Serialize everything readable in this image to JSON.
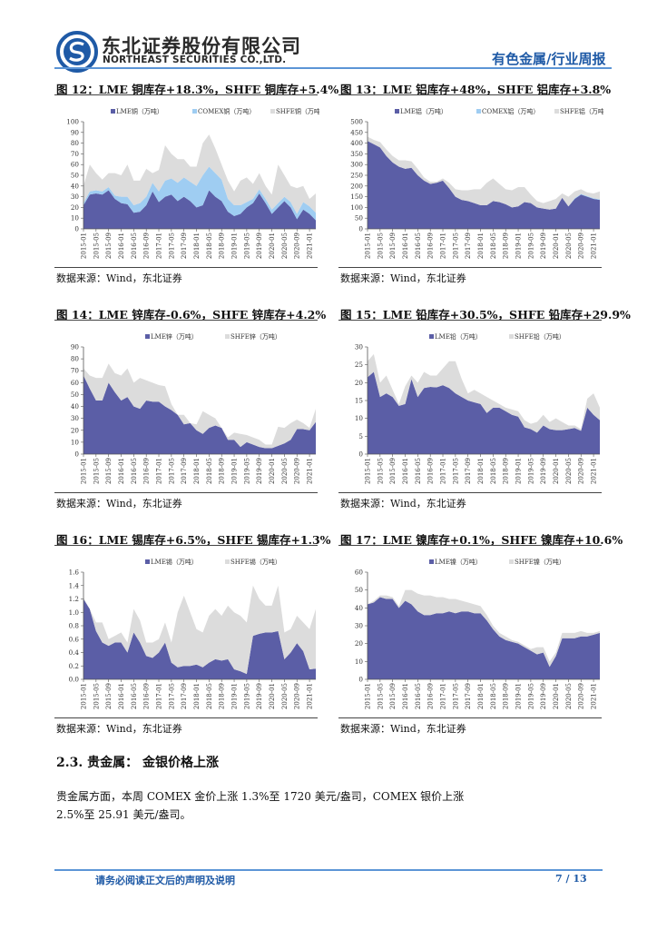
{
  "header": {
    "company_cn": "东北证券股份有限公司",
    "company_en": "NORTHEAST SECURITIES CO.,LTD.",
    "report_type": "有色金属/行业周报",
    "logo_color": "#1f5aa6"
  },
  "colors": {
    "LME": "#5b5ea6",
    "COMEX": "#9fcdf2",
    "SHFE": "#dcdcdc"
  },
  "figures": [
    {
      "title": "图  12：LME 铜库存+18.3%，SHFE 铜库存+5.4%",
      "source": "数据来源：Wind，东北证券"
    },
    {
      "title": "图  13：LME 铝库存+48%，SHFE 铝库存+3.8%",
      "source": "数据来源：Wind，东北证券"
    },
    {
      "title": "图  14：LME 锌库存-0.6%，SHFE 锌库存+4.2%",
      "source": "数据来源：Wind，东北证券"
    },
    {
      "title": "图  15：LME 铅库存+30.5%，SHFE 铅库存+29.9%",
      "source": "数据来源：Wind，东北证券"
    },
    {
      "title": "图  16：LME 锡库存+6.5%，SHFE 锡库存+1.3%",
      "source": "数据来源：Wind，东北证券"
    },
    {
      "title": "图  17：LME 镍库存+0.1%，SHFE 镍库存+10.6%",
      "source": "数据来源：Wind，东北证券"
    }
  ],
  "chart_data": [
    {
      "type": "area",
      "stacked": true,
      "ylim": [
        0,
        100
      ],
      "yticks": [
        "0",
        "10",
        "20",
        "30",
        "40",
        "50",
        "60",
        "70",
        "80",
        "90",
        "100"
      ],
      "xticks": [
        "2015-01",
        "2015-05",
        "2015-09",
        "2016-01",
        "2016-05",
        "2016-09",
        "2017-01",
        "2017-05",
        "2017-09",
        "2018-01",
        "2018-05",
        "2018-09",
        "2019-01",
        "2019-05",
        "2019-09",
        "2020-01",
        "2020-05",
        "2020-09",
        "2021-01"
      ],
      "legend": "top",
      "grid": false,
      "x": [
        "2015-01",
        "2015-03",
        "2015-05",
        "2015-07",
        "2015-09",
        "2015-11",
        "2016-01",
        "2016-03",
        "2016-05",
        "2016-07",
        "2016-09",
        "2016-11",
        "2017-01",
        "2017-03",
        "2017-05",
        "2017-07",
        "2017-09",
        "2017-11",
        "2018-01",
        "2018-03",
        "2018-05",
        "2018-07",
        "2018-09",
        "2018-11",
        "2019-01",
        "2019-03",
        "2019-05",
        "2019-07",
        "2019-09",
        "2019-11",
        "2020-01",
        "2020-03",
        "2020-05",
        "2020-07",
        "2020-09",
        "2020-11",
        "2021-01",
        "2021-03"
      ],
      "series": [
        {
          "name": "LME铜（万吨）",
          "key": "LME",
          "values": [
            22,
            32,
            33,
            32,
            36,
            28,
            24,
            23,
            15,
            16,
            22,
            35,
            25,
            30,
            32,
            26,
            30,
            26,
            20,
            22,
            36,
            30,
            26,
            16,
            12,
            14,
            20,
            24,
            33,
            24,
            14,
            20,
            26,
            20,
            9,
            18,
            14,
            8
          ]
        },
        {
          "name": "COMEX铜（万吨）",
          "key": "COMEX",
          "values": [
            2,
            3,
            3,
            3,
            3,
            3,
            6,
            7,
            7,
            8,
            8,
            8,
            10,
            15,
            15,
            17,
            18,
            18,
            20,
            28,
            22,
            22,
            20,
            12,
            10,
            8,
            5,
            4,
            4,
            4,
            4,
            4,
            4,
            5,
            5,
            7,
            7,
            7
          ]
        },
        {
          "name": "SHFE铜（万吨）",
          "key": "SHFE",
          "values": [
            16,
            25,
            16,
            11,
            13,
            21,
            20,
            30,
            23,
            21,
            26,
            9,
            20,
            33,
            23,
            22,
            17,
            14,
            18,
            30,
            30,
            23,
            14,
            17,
            13,
            23,
            23,
            14,
            15,
            12,
            14,
            36,
            20,
            15,
            24,
            15,
            7,
            18
          ]
        }
      ]
    },
    {
      "type": "area",
      "stacked": true,
      "ylim": [
        0,
        500
      ],
      "yticks": [
        "0",
        "50",
        "100",
        "150",
        "200",
        "250",
        "300",
        "350",
        "400",
        "450",
        "500"
      ],
      "xticks": [
        "2015-01",
        "2015-05",
        "2015-09",
        "2016-01",
        "2016-05",
        "2016-09",
        "2017-01",
        "2017-05",
        "2017-09",
        "2018-01",
        "2018-05",
        "2018-09",
        "2019-01",
        "2019-05",
        "2019-09",
        "2020-01",
        "2020-05",
        "2020-09",
        "2021-01"
      ],
      "legend": "top",
      "grid": false,
      "x": [
        "2015-01",
        "2015-03",
        "2015-05",
        "2015-07",
        "2015-09",
        "2015-11",
        "2016-01",
        "2016-03",
        "2016-05",
        "2016-07",
        "2016-09",
        "2016-11",
        "2017-01",
        "2017-03",
        "2017-05",
        "2017-07",
        "2017-09",
        "2017-11",
        "2018-01",
        "2018-03",
        "2018-05",
        "2018-07",
        "2018-09",
        "2018-11",
        "2019-01",
        "2019-03",
        "2019-05",
        "2019-07",
        "2019-09",
        "2019-11",
        "2020-01",
        "2020-03",
        "2020-05",
        "2020-07",
        "2020-09",
        "2020-11",
        "2021-01",
        "2021-03"
      ],
      "series": [
        {
          "name": "LME铝（万吨）",
          "key": "LME",
          "values": [
            410,
            395,
            380,
            340,
            310,
            290,
            280,
            285,
            250,
            225,
            210,
            215,
            225,
            190,
            150,
            135,
            130,
            120,
            110,
            110,
            130,
            125,
            115,
            100,
            105,
            125,
            120,
            100,
            95,
            90,
            95,
            145,
            105,
            140,
            160,
            150,
            140,
            135
          ]
        },
        {
          "name": "COMEX铝（万吨）",
          "key": "COMEX",
          "values": [
            0,
            0,
            0,
            0,
            0,
            0,
            0,
            0,
            0,
            0,
            0,
            0,
            0,
            0,
            0,
            0,
            0,
            0,
            0,
            0,
            0,
            0,
            0,
            0,
            0,
            0,
            0,
            0,
            0,
            0,
            0,
            0,
            0,
            3,
            3,
            3,
            3,
            3
          ]
        },
        {
          "name": "SHFE铝（万吨）",
          "key": "SHFE",
          "values": [
            20,
            20,
            25,
            30,
            30,
            30,
            40,
            30,
            30,
            15,
            10,
            5,
            10,
            25,
            35,
            45,
            50,
            65,
            75,
            105,
            105,
            85,
            70,
            80,
            90,
            70,
            40,
            30,
            25,
            40,
            45,
            20,
            45,
            32,
            22,
            17,
            22,
            37
          ]
        }
      ]
    },
    {
      "type": "area",
      "stacked": true,
      "ylim": [
        0,
        90
      ],
      "yticks": [
        "0",
        "10",
        "20",
        "30",
        "40",
        "50",
        "60",
        "70",
        "80",
        "90"
      ],
      "xticks": [
        "2015-01",
        "2015-05",
        "2015-09",
        "2016-01",
        "2016-05",
        "2016-09",
        "2017-01",
        "2017-05",
        "2017-09",
        "2018-01",
        "2018-05",
        "2018-09",
        "2019-01",
        "2019-05",
        "2019-09",
        "2020-01",
        "2020-05",
        "2020-09",
        "2021-01"
      ],
      "legend": "top",
      "grid": false,
      "x": [
        "2015-01",
        "2015-03",
        "2015-05",
        "2015-07",
        "2015-09",
        "2015-11",
        "2016-01",
        "2016-03",
        "2016-05",
        "2016-07",
        "2016-09",
        "2016-11",
        "2017-01",
        "2017-03",
        "2017-05",
        "2017-07",
        "2017-09",
        "2017-11",
        "2018-01",
        "2018-03",
        "2018-05",
        "2018-07",
        "2018-09",
        "2018-11",
        "2019-01",
        "2019-03",
        "2019-05",
        "2019-07",
        "2019-09",
        "2019-11",
        "2020-01",
        "2020-03",
        "2020-05",
        "2020-07",
        "2020-09",
        "2020-11",
        "2021-01",
        "2021-03"
      ],
      "series": [
        {
          "name": "LME锌（万吨）",
          "key": "LME",
          "values": [
            66,
            55,
            45,
            45,
            60,
            52,
            45,
            48,
            40,
            38,
            45,
            44,
            44,
            40,
            37,
            33,
            25,
            26,
            20,
            17,
            22,
            24,
            22,
            12,
            12,
            6,
            10,
            8,
            6,
            5,
            5,
            7,
            9,
            12,
            21,
            21,
            20,
            27
          ]
        },
        {
          "name": "SHFE锌（万吨）",
          "key": "SHFE",
          "values": [
            6,
            11,
            19,
            19,
            16,
            16,
            21,
            24,
            20,
            26,
            17,
            16,
            14,
            17,
            5,
            0,
            8,
            0,
            5,
            19,
            11,
            6,
            0,
            2,
            6,
            11,
            6,
            6,
            6,
            3,
            3,
            16,
            13,
            14,
            8,
            5,
            2,
            11
          ]
        }
      ]
    },
    {
      "type": "area",
      "stacked": true,
      "ylim": [
        0,
        30
      ],
      "yticks": [
        "0",
        "5",
        "10",
        "15",
        "20",
        "25",
        "30"
      ],
      "xticks": [
        "2015-01",
        "2015-05",
        "2015-09",
        "2016-01",
        "2016-05",
        "2016-09",
        "2017-01",
        "2017-05",
        "2017-09",
        "2018-01",
        "2018-05",
        "2018-09",
        "2019-01",
        "2019-05",
        "2019-09",
        "2020-01",
        "2020-05",
        "2020-09",
        "2021-01"
      ],
      "legend": "top",
      "grid": false,
      "x": [
        "2015-01",
        "2015-03",
        "2015-05",
        "2015-07",
        "2015-09",
        "2015-11",
        "2016-01",
        "2016-03",
        "2016-05",
        "2016-07",
        "2016-09",
        "2016-11",
        "2017-01",
        "2017-03",
        "2017-05",
        "2017-07",
        "2017-09",
        "2017-11",
        "2018-01",
        "2018-03",
        "2018-05",
        "2018-07",
        "2018-09",
        "2018-11",
        "2019-01",
        "2019-03",
        "2019-05",
        "2019-07",
        "2019-09",
        "2019-11",
        "2020-01",
        "2020-03",
        "2020-05",
        "2020-07",
        "2020-09",
        "2020-11",
        "2021-01",
        "2021-03"
      ],
      "series": [
        {
          "name": "LME铅（万吨）",
          "key": "LME",
          "values": [
            21.5,
            23,
            16,
            17,
            16,
            13.5,
            14,
            21,
            16,
            18.5,
            18.8,
            18.7,
            19.3,
            18.5,
            17,
            16,
            15,
            14.5,
            14,
            11.5,
            13,
            13,
            12,
            11,
            10.5,
            7.5,
            7,
            6,
            8,
            7,
            6.7,
            6.7,
            7,
            7.3,
            6.5,
            13,
            11,
            9.5
          ]
        },
        {
          "name": "SHFE铅（万吨）",
          "key": "SHFE",
          "values": [
            4.5,
            5,
            4,
            5,
            2,
            0.5,
            5,
            1,
            4,
            4.5,
            3.2,
            3.3,
            4.7,
            7.5,
            9,
            5,
            2,
            3.5,
            3,
            4.5,
            2,
            1,
            1,
            1.5,
            1.5,
            2,
            1.5,
            3,
            3,
            2,
            3.3,
            2.3,
            1,
            0.7,
            0.5,
            2.5,
            6,
            3.5
          ]
        }
      ]
    },
    {
      "type": "area",
      "stacked": true,
      "ylim": [
        0,
        1.6
      ],
      "yticks": [
        "0.0",
        "0.2",
        "0.4",
        "0.6",
        "0.8",
        "1.0",
        "1.2",
        "1.4",
        "1.6"
      ],
      "xticks": [
        "2015-01",
        "2015-05",
        "2015-09",
        "2016-01",
        "2016-05",
        "2016-09",
        "2017-01",
        "2017-05",
        "2017-09",
        "2018-01",
        "2018-05",
        "2018-09",
        "2019-01",
        "2019-05",
        "2019-09",
        "2020-01",
        "2020-05",
        "2020-09",
        "2021-01"
      ],
      "legend": "top",
      "grid": false,
      "x": [
        "2015-01",
        "2015-03",
        "2015-05",
        "2015-07",
        "2015-09",
        "2015-11",
        "2016-01",
        "2016-03",
        "2016-05",
        "2016-07",
        "2016-09",
        "2016-11",
        "2017-01",
        "2017-03",
        "2017-05",
        "2017-07",
        "2017-09",
        "2017-11",
        "2018-01",
        "2018-03",
        "2018-05",
        "2018-07",
        "2018-09",
        "2018-11",
        "2019-01",
        "2019-03",
        "2019-05",
        "2019-07",
        "2019-09",
        "2019-11",
        "2020-01",
        "2020-03",
        "2020-05",
        "2020-07",
        "2020-09",
        "2020-11",
        "2021-01",
        "2021-03"
      ],
      "series": [
        {
          "name": "LME锡（万吨）",
          "key": "LME",
          "values": [
            1.2,
            1.05,
            0.72,
            0.55,
            0.5,
            0.55,
            0.55,
            0.4,
            0.7,
            0.55,
            0.35,
            0.32,
            0.4,
            0.55,
            0.25,
            0.18,
            0.2,
            0.2,
            0.22,
            0.18,
            0.25,
            0.3,
            0.28,
            0.3,
            0.15,
            0.12,
            0.08,
            0.65,
            0.68,
            0.7,
            0.7,
            0.72,
            0.3,
            0.4,
            0.54,
            0.42,
            0.15,
            0.16
          ]
        },
        {
          "name": "SHFE锡（万吨）",
          "key": "SHFE",
          "values": [
            0.02,
            0,
            0.13,
            0.3,
            0.1,
            0.1,
            0.15,
            0.15,
            0.35,
            0.33,
            0.2,
            0.23,
            0.2,
            0.3,
            0.3,
            0.82,
            1.05,
            0.8,
            0.53,
            0.52,
            0.7,
            0.75,
            0.67,
            0.8,
            0.85,
            0.83,
            0.77,
            0.75,
            0.52,
            0.4,
            0.4,
            0.68,
            0.4,
            0.35,
            0.41,
            0.43,
            0.6,
            0.89
          ]
        }
      ]
    },
    {
      "type": "area",
      "stacked": true,
      "ylim": [
        0,
        60
      ],
      "yticks": [
        "0",
        "10",
        "20",
        "30",
        "40",
        "50",
        "60"
      ],
      "xticks": [
        "2015-01",
        "2015-05",
        "2015-09",
        "2016-01",
        "2016-05",
        "2016-09",
        "2017-01",
        "2017-05",
        "2017-09",
        "2018-01",
        "2018-05",
        "2018-09",
        "2019-01",
        "2019-05",
        "2019-09",
        "2020-01",
        "2020-05",
        "2020-09",
        "2021-01"
      ],
      "legend": "top",
      "grid": false,
      "x": [
        "2015-01",
        "2015-03",
        "2015-05",
        "2015-07",
        "2015-09",
        "2015-11",
        "2016-01",
        "2016-03",
        "2016-05",
        "2016-07",
        "2016-09",
        "2016-11",
        "2017-01",
        "2017-03",
        "2017-05",
        "2017-07",
        "2017-09",
        "2017-11",
        "2018-01",
        "2018-03",
        "2018-05",
        "2018-07",
        "2018-09",
        "2018-11",
        "2019-01",
        "2019-03",
        "2019-05",
        "2019-07",
        "2019-09",
        "2019-11",
        "2020-01",
        "2020-03",
        "2020-05",
        "2020-07",
        "2020-09",
        "2020-11",
        "2021-01",
        "2021-03"
      ],
      "series": [
        {
          "name": "LME镍（万吨）",
          "key": "LME",
          "values": [
            42,
            43,
            46,
            45,
            45,
            40,
            44,
            42,
            38,
            36,
            36,
            37,
            37,
            38,
            37,
            38,
            38,
            37,
            37,
            33,
            28,
            24,
            22,
            21,
            20,
            18,
            16,
            14,
            15,
            7,
            13,
            23,
            23,
            23,
            24,
            24,
            25,
            26
          ]
        },
        {
          "name": "SHFE镍（万吨）",
          "key": "SHFE",
          "values": [
            0,
            1,
            1,
            2,
            1,
            1,
            6,
            8,
            10,
            11,
            11,
            9,
            9,
            7,
            8,
            6,
            5,
            5,
            4,
            3,
            2,
            2,
            2,
            1,
            1,
            1,
            1,
            4,
            3,
            3,
            2,
            3,
            3,
            3,
            3,
            2,
            1,
            1
          ]
        }
      ]
    }
  ],
  "section": {
    "heading": "2.3.  贵金属：  金银价格上涨",
    "body_line1": "贵金属方面，本周 COMEX 金价上涨 1.3%至 1720 美元/盎司，COMEX 银价上涨",
    "body_line2": "2.5%至 25.91 美元/盎司。"
  },
  "footer": {
    "note": "请务必阅读正文后的声明及说明",
    "page": "7 / 13"
  }
}
